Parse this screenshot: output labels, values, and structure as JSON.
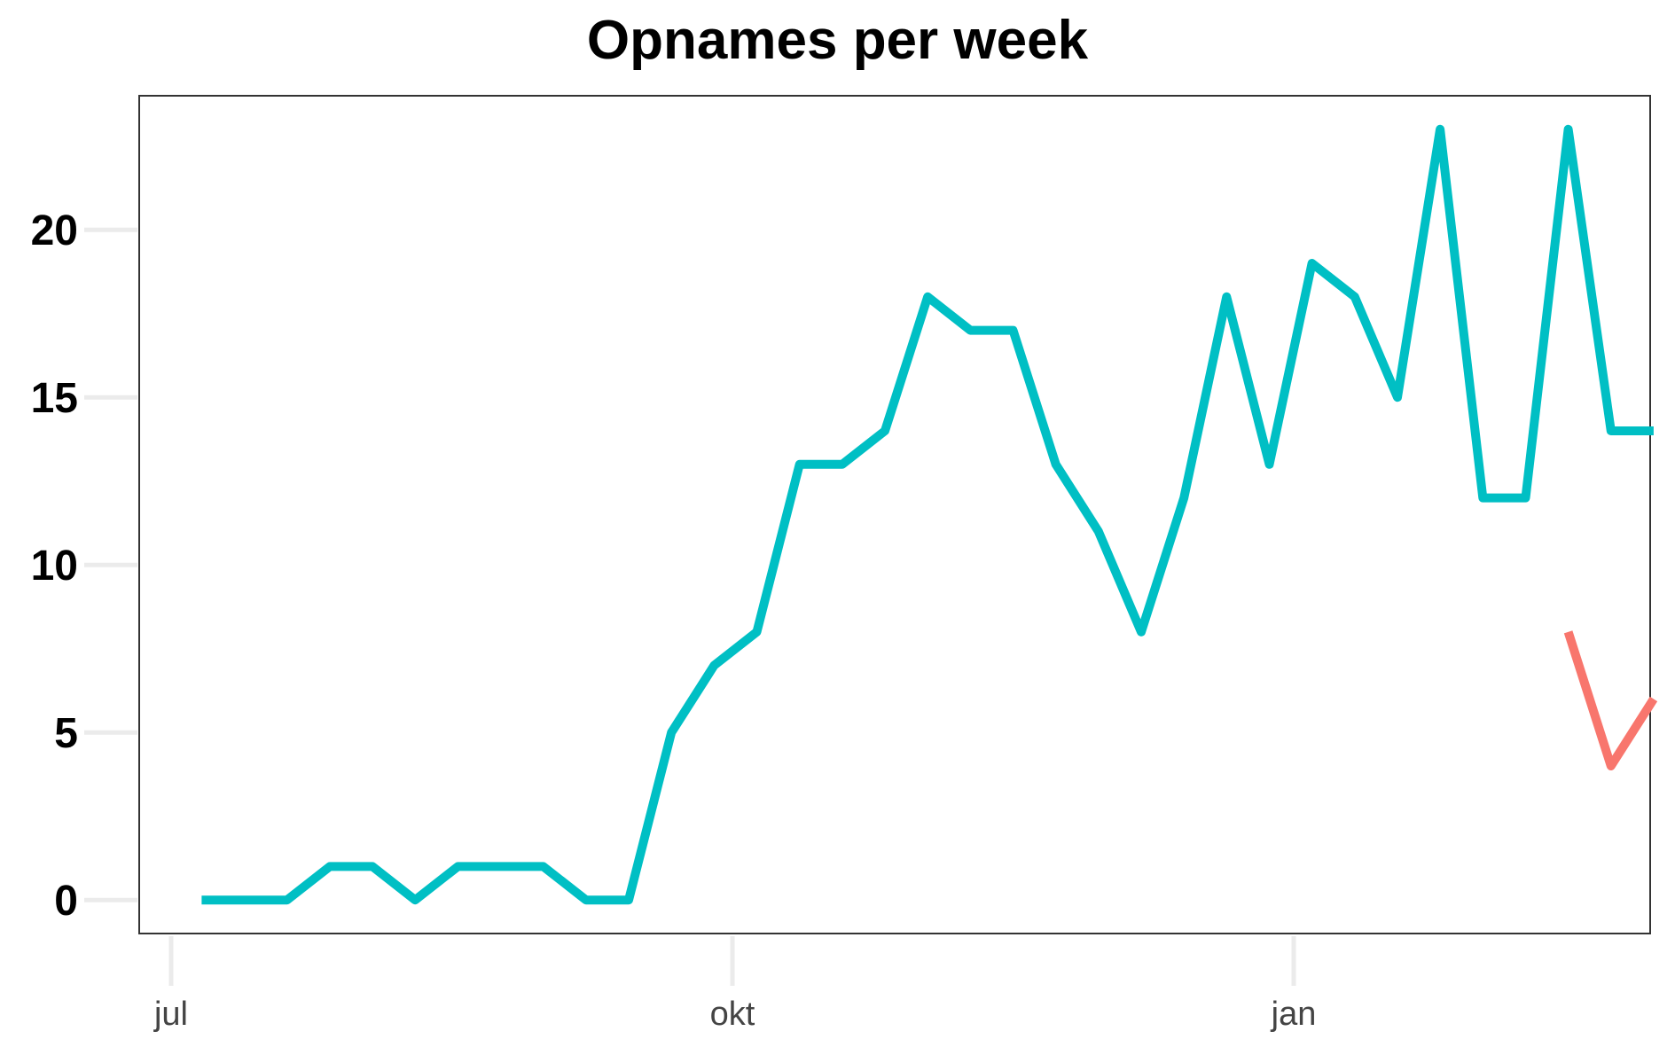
{
  "chart_data": {
    "type": "line",
    "title": "Opnames per week",
    "xlabel": "",
    "ylabel": "",
    "x_ticks": [
      "jul",
      "okt",
      "jan"
    ],
    "y_ticks": [
      "0",
      "5",
      "10",
      "15",
      "20"
    ],
    "ylim": [
      -1,
      24
    ],
    "grid": "ticks-only",
    "legend": "none",
    "series": [
      {
        "color": "#00BFC4",
        "x": [
          "2020-07-06",
          "2020-07-13",
          "2020-07-20",
          "2020-07-27",
          "2020-08-03",
          "2020-08-10",
          "2020-08-17",
          "2020-08-24",
          "2020-08-31",
          "2020-09-07",
          "2020-09-14",
          "2020-09-21",
          "2020-09-28",
          "2020-10-05",
          "2020-10-12",
          "2020-10-19",
          "2020-10-26",
          "2020-11-02",
          "2020-11-09",
          "2020-11-16",
          "2020-11-23",
          "2020-11-30",
          "2020-12-07",
          "2020-12-14",
          "2020-12-21",
          "2020-12-28",
          "2021-01-04",
          "2021-01-11",
          "2021-01-18",
          "2021-01-25",
          "2021-02-01",
          "2021-02-08",
          "2021-02-15",
          "2021-02-22",
          "2021-03-01"
        ],
        "values": [
          0,
          0,
          0,
          1,
          1,
          0,
          1,
          1,
          1,
          0,
          0,
          5,
          7,
          8,
          13,
          13,
          14,
          18,
          17,
          17,
          13,
          11,
          8,
          12,
          18,
          13,
          19,
          18,
          15,
          23,
          12,
          12,
          23,
          14,
          14
        ]
      },
      {
        "color": "#F8766D",
        "x": [
          "2021-02-15",
          "2021-02-22",
          "2021-03-01"
        ],
        "values": [
          8,
          4,
          6
        ]
      }
    ]
  }
}
